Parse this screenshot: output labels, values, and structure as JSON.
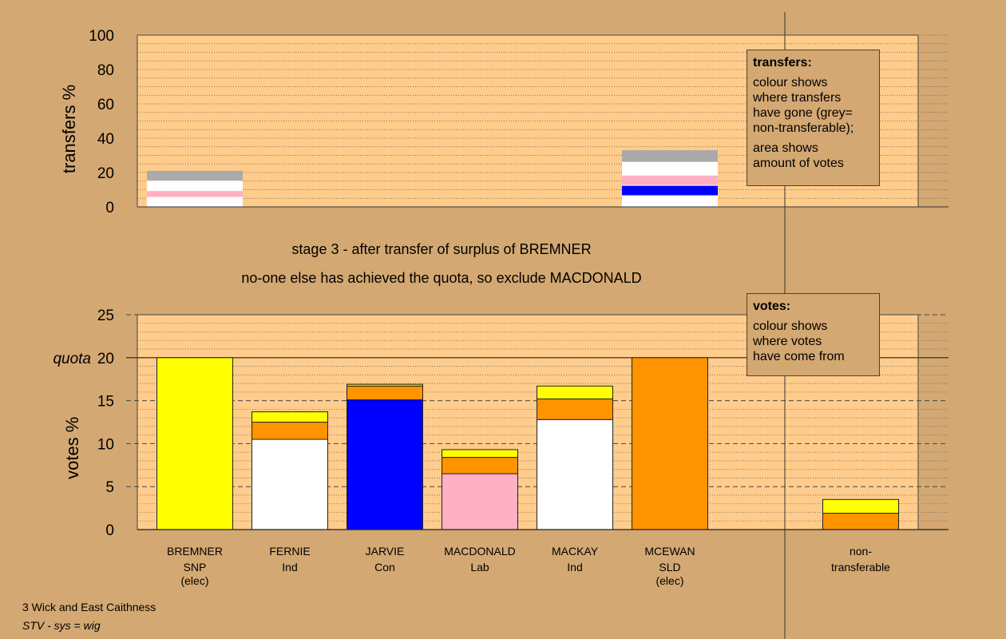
{
  "stage_title": "stage 3 - after transfer of surplus of BREMNER",
  "stage_note": "no-one else has achieved the quota, so exclude MACDONALD",
  "colors": {
    "background": "#D4A872",
    "plot_bg": "#FFCC8C",
    "SNP": "#FFFF00",
    "Ind": "#FFFFFF",
    "Con": "#0000FF",
    "Lab": "#FFB0C4",
    "SLD": "#FF9400",
    "nontransferable": "#AAAAAA"
  },
  "transfers_box": {
    "heading": "transfers:",
    "lines1": [
      "colour shows",
      "where transfers",
      "have gone (grey=",
      "non-transferable);"
    ],
    "lines2": [
      "area shows",
      "amount of votes"
    ]
  },
  "votes_box": {
    "heading": "votes:",
    "lines": [
      "colour shows",
      "where votes",
      "have come from"
    ]
  },
  "footer": {
    "line1": "3 Wick and East Caithness",
    "line2": "STV - sys = wig"
  },
  "chart_data": [
    {
      "type": "bar",
      "ylabel": "transfers %",
      "ylim": [
        0,
        100
      ],
      "yticks": [
        "0",
        "20",
        "40",
        "60",
        "80",
        "100"
      ],
      "grid": true,
      "bars": [
        {
          "slot": 0,
          "segments": [
            {
              "color": "Ind",
              "from": 0,
              "to": 5.5
            },
            {
              "color": "Lab",
              "from": 5.5,
              "to": 9.5
            },
            {
              "color": "Ind",
              "from": 9.5,
              "to": 15
            },
            {
              "color": "nontransferable",
              "from": 15,
              "to": 21
            }
          ]
        },
        {
          "slot": 5,
          "segments": [
            {
              "color": "Ind",
              "from": 0,
              "to": 6.5
            },
            {
              "color": "Con",
              "from": 6.5,
              "to": 12.5
            },
            {
              "color": "Lab",
              "from": 12.5,
              "to": 18.5
            },
            {
              "color": "Ind",
              "from": 18.5,
              "to": 26
            },
            {
              "color": "nontransferable",
              "from": 26,
              "to": 33
            }
          ]
        }
      ]
    },
    {
      "type": "bar",
      "ylabel": "votes %",
      "ylim": [
        0,
        25
      ],
      "yticks": [
        "0",
        "5",
        "10",
        "15",
        "20",
        "25"
      ],
      "quota": 20,
      "quota_label": "quota",
      "grid": true,
      "candidates": [
        {
          "name": "BREMNER",
          "party": "SNP",
          "note": "(elec)",
          "segments": [
            {
              "color": "SNP",
              "value": 20
            }
          ]
        },
        {
          "name": "FERNIE",
          "party": "Ind",
          "note": "",
          "segments": [
            {
              "color": "Ind",
              "value": 10.5
            },
            {
              "color": "SLD",
              "value": 2
            },
            {
              "color": "SNP",
              "value": 1.2
            }
          ]
        },
        {
          "name": "JARVIE",
          "party": "Con",
          "note": "",
          "segments": [
            {
              "color": "Con",
              "value": 15.1
            },
            {
              "color": "SLD",
              "value": 1.6
            },
            {
              "color": "SNP",
              "value": 0.2
            }
          ]
        },
        {
          "name": "MACDONALD",
          "party": "Lab",
          "note": "",
          "segments": [
            {
              "color": "Lab",
              "value": 6.5
            },
            {
              "color": "SLD",
              "value": 1.9
            },
            {
              "color": "SNP",
              "value": 0.9
            }
          ]
        },
        {
          "name": "MACKAY",
          "party": "Ind",
          "note": "",
          "segments": [
            {
              "color": "Ind",
              "value": 12.8
            },
            {
              "color": "SLD",
              "value": 2.4
            },
            {
              "color": "SNP",
              "value": 1.5
            }
          ]
        },
        {
          "name": "MCEWAN",
          "party": "SLD",
          "note": "(elec)",
          "segments": [
            {
              "color": "SLD",
              "value": 20
            }
          ]
        }
      ],
      "nontransferable": {
        "label1": "non-",
        "label2": "transferable",
        "segments": [
          {
            "color": "SLD",
            "value": 1.9
          },
          {
            "color": "SNP",
            "value": 1.6
          }
        ]
      }
    }
  ]
}
